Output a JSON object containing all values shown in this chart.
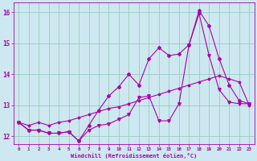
{
  "title": "",
  "xlabel": "Windchill (Refroidissement éolien,°C)",
  "ylabel": "",
  "bg_color": "#cde8f0",
  "grid_color": "#99ccbb",
  "line_color": "#aa00aa",
  "xlim": [
    -0.5,
    23.5
  ],
  "ylim": [
    11.75,
    16.3
  ],
  "yticks": [
    12,
    13,
    14,
    15,
    16
  ],
  "xticks": [
    0,
    1,
    2,
    3,
    4,
    5,
    6,
    7,
    8,
    9,
    10,
    11,
    12,
    13,
    14,
    15,
    16,
    17,
    18,
    19,
    20,
    21,
    22,
    23
  ],
  "line1_x": [
    0,
    1,
    2,
    3,
    4,
    5,
    6,
    7,
    8,
    9,
    10,
    11,
    12,
    13,
    14,
    15,
    16,
    17,
    18,
    19,
    20,
    21,
    22,
    23
  ],
  "line1_y": [
    12.45,
    12.2,
    12.2,
    12.1,
    12.1,
    12.15,
    11.85,
    12.2,
    12.35,
    12.4,
    12.55,
    12.7,
    13.25,
    13.3,
    12.5,
    12.5,
    13.05,
    14.95,
    15.95,
    14.6,
    13.5,
    13.1,
    13.05,
    13.05
  ],
  "line2_x": [
    0,
    1,
    2,
    3,
    4,
    5,
    6,
    7,
    8,
    9,
    10,
    11,
    12,
    13,
    14,
    15,
    16,
    17,
    18,
    19,
    20,
    21,
    22,
    23
  ],
  "line2_y": [
    12.45,
    12.2,
    12.2,
    12.1,
    12.1,
    12.15,
    11.85,
    12.35,
    12.85,
    13.3,
    13.6,
    14.0,
    13.65,
    14.5,
    14.85,
    14.6,
    14.65,
    14.95,
    16.05,
    15.55,
    14.5,
    13.65,
    13.15,
    13.05
  ],
  "line3_x": [
    0,
    1,
    2,
    3,
    4,
    5,
    6,
    7,
    8,
    9,
    10,
    11,
    12,
    13,
    14,
    15,
    16,
    17,
    18,
    19,
    20,
    21,
    22,
    23
  ],
  "line3_y": [
    12.45,
    12.35,
    12.45,
    12.35,
    12.45,
    12.5,
    12.6,
    12.7,
    12.8,
    12.9,
    12.95,
    13.05,
    13.15,
    13.25,
    13.35,
    13.45,
    13.55,
    13.65,
    13.75,
    13.85,
    13.95,
    13.85,
    13.75,
    13.0
  ]
}
